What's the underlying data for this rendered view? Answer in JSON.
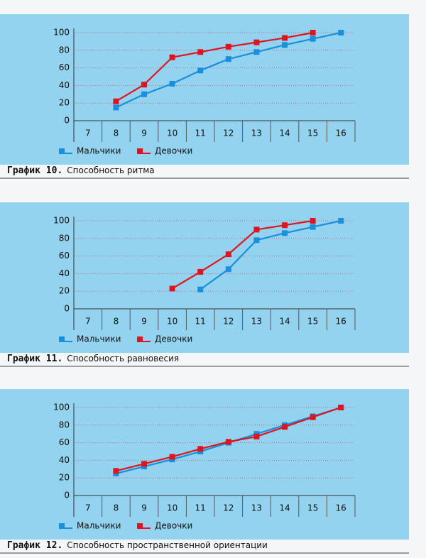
{
  "chart_data": [
    {
      "type": "line",
      "label": "График 10.",
      "title": "Способность ритма",
      "categories": [
        "7",
        "8",
        "9",
        "10",
        "11",
        "12",
        "13",
        "14",
        "15",
        "16"
      ],
      "series": [
        {
          "name": "Мальчики",
          "color": "#1a8fdc",
          "values": [
            null,
            15,
            30,
            42,
            57,
            70,
            78,
            86,
            93,
            100
          ]
        },
        {
          "name": "Девочки",
          "color": "#e0141e",
          "values": [
            null,
            22,
            41,
            72,
            78,
            84,
            89,
            94,
            100,
            null
          ]
        }
      ],
      "ylim": [
        0,
        100
      ],
      "yticks": [
        0,
        20,
        40,
        60,
        80,
        100
      ],
      "grid": true
    },
    {
      "type": "line",
      "label": "График 11.",
      "title": "Способность равновесия",
      "categories": [
        "7",
        "8",
        "9",
        "10",
        "11",
        "12",
        "13",
        "14",
        "15",
        "16"
      ],
      "series": [
        {
          "name": "Мальчики",
          "color": "#1a8fdc",
          "values": [
            null,
            null,
            null,
            null,
            22,
            45,
            78,
            86,
            93,
            100
          ]
        },
        {
          "name": "Девочки",
          "color": "#e0141e",
          "values": [
            null,
            null,
            null,
            23,
            42,
            62,
            90,
            95,
            100,
            null
          ]
        }
      ],
      "ylim": [
        0,
        100
      ],
      "yticks": [
        0,
        20,
        40,
        60,
        80,
        100
      ],
      "grid": true
    },
    {
      "type": "line",
      "label": "График 12.",
      "title": "Способность пространственной ориентации",
      "categories": [
        "7",
        "8",
        "9",
        "10",
        "11",
        "12",
        "13",
        "14",
        "15",
        "16"
      ],
      "series": [
        {
          "name": "Мальчики",
          "color": "#1a8fdc",
          "values": [
            null,
            25,
            33,
            41,
            50,
            60,
            70,
            80,
            90,
            100
          ]
        },
        {
          "name": "Девочки",
          "color": "#e0141e",
          "values": [
            null,
            28,
            36,
            44,
            53,
            61,
            67,
            78,
            89,
            100
          ]
        }
      ],
      "ylim": [
        0,
        100
      ],
      "yticks": [
        0,
        20,
        40,
        60,
        80,
        100
      ],
      "grid": true
    }
  ]
}
